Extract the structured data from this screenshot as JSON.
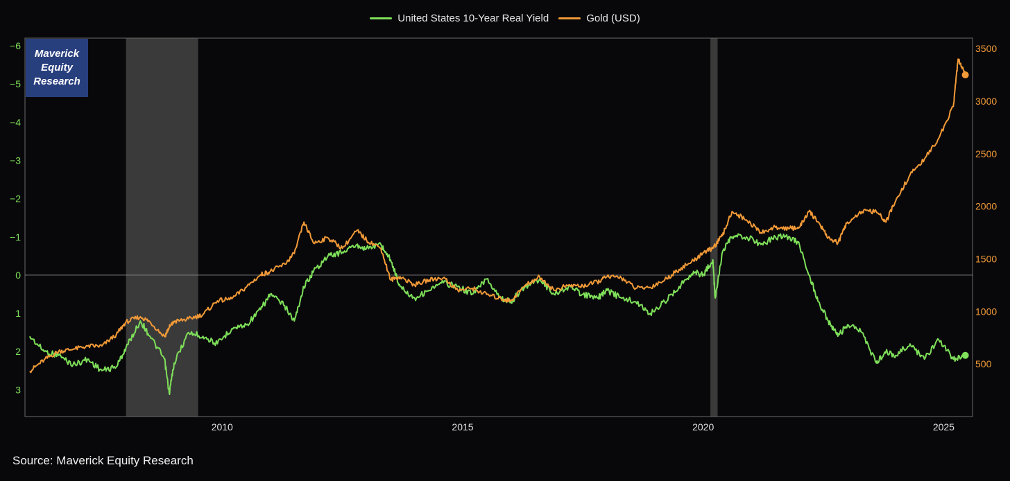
{
  "source_text": "Source: Maverick Equity Research",
  "badge": {
    "line1": "Maverick",
    "line2": "Equity",
    "line3": "Research"
  },
  "colors": {
    "background": "#08080a",
    "real_yield": "#7fe05a",
    "gold": "#f29a38",
    "recession_shade": "#3a3a3a",
    "badge_bg": "#283f7e"
  },
  "chart_data": {
    "type": "line",
    "title": "",
    "x_range": [
      2005.9,
      2025.6
    ],
    "x_ticks": [
      "2010",
      "2015",
      "2020",
      "2025"
    ],
    "legend_position": "top-center",
    "grid": false,
    "recession_periods": [
      [
        2008.0,
        2009.5
      ],
      [
        2020.15,
        2020.3
      ]
    ],
    "axes": {
      "left": {
        "inverted": true,
        "range": [
          -6.2,
          3.7
        ],
        "ticks": [
          -6,
          -5,
          -4,
          -3,
          -2,
          -1,
          0,
          1,
          2,
          3
        ],
        "tick_labels": [
          "−6",
          "−5",
          "−4",
          "−3",
          "−2",
          "−1",
          "0",
          "1",
          "2",
          "3"
        ]
      },
      "right": {
        "range": [
          -0.3,
          3600
        ],
        "ticks": [
          500,
          1000,
          1500,
          2000,
          2500,
          3000,
          3500
        ],
        "tick_labels": [
          "500",
          "1000",
          "1500",
          "2000",
          "2500",
          "3000",
          "3500"
        ]
      }
    },
    "series": [
      {
        "name": "United States 10-Year Real Yield",
        "axis": "left",
        "x": [
          2006.0,
          2006.3,
          2006.6,
          2006.9,
          2007.2,
          2007.5,
          2007.8,
          2008.0,
          2008.3,
          2008.5,
          2008.8,
          2008.9,
          2009.0,
          2009.3,
          2009.6,
          2009.9,
          2010.2,
          2010.5,
          2010.8,
          2011.0,
          2011.3,
          2011.5,
          2011.7,
          2011.9,
          2012.2,
          2012.5,
          2012.8,
          2013.0,
          2013.3,
          2013.5,
          2013.7,
          2014.0,
          2014.3,
          2014.6,
          2014.9,
          2015.2,
          2015.5,
          2015.8,
          2016.0,
          2016.3,
          2016.6,
          2016.9,
          2017.2,
          2017.5,
          2017.8,
          2018.0,
          2018.3,
          2018.6,
          2018.9,
          2019.2,
          2019.5,
          2019.8,
          2020.0,
          2020.2,
          2020.25,
          2020.4,
          2020.6,
          2020.9,
          2021.2,
          2021.5,
          2021.8,
          2022.0,
          2022.2,
          2022.4,
          2022.6,
          2022.8,
          2023.0,
          2023.3,
          2023.6,
          2023.8,
          2024.0,
          2024.3,
          2024.6,
          2024.9,
          2025.2,
          2025.45
        ],
        "values": [
          1.6,
          2.0,
          2.1,
          2.35,
          2.2,
          2.5,
          2.4,
          1.9,
          1.2,
          1.6,
          2.2,
          3.1,
          2.3,
          1.5,
          1.6,
          1.8,
          1.4,
          1.3,
          0.9,
          0.5,
          0.8,
          1.2,
          0.3,
          -0.1,
          -0.5,
          -0.6,
          -0.8,
          -0.7,
          -0.8,
          -0.4,
          0.3,
          0.6,
          0.4,
          0.2,
          0.3,
          0.5,
          0.1,
          0.6,
          0.7,
          0.3,
          0.1,
          0.5,
          0.3,
          0.5,
          0.6,
          0.4,
          0.6,
          0.7,
          1.0,
          0.7,
          0.3,
          -0.1,
          0.0,
          -0.4,
          0.6,
          -0.6,
          -1.0,
          -1.0,
          -0.8,
          -1.0,
          -1.0,
          -0.8,
          0.0,
          0.7,
          1.2,
          1.6,
          1.3,
          1.5,
          2.3,
          2.0,
          2.1,
          1.8,
          2.2,
          1.7,
          2.2,
          2.1
        ]
      },
      {
        "name": "Gold (USD)",
        "axis": "right",
        "x": [
          2006.0,
          2006.3,
          2006.6,
          2006.9,
          2007.2,
          2007.5,
          2007.8,
          2008.0,
          2008.3,
          2008.5,
          2008.8,
          2008.9,
          2009.0,
          2009.3,
          2009.6,
          2009.9,
          2010.2,
          2010.5,
          2010.8,
          2011.0,
          2011.3,
          2011.5,
          2011.7,
          2011.9,
          2012.2,
          2012.5,
          2012.8,
          2013.0,
          2013.3,
          2013.5,
          2013.7,
          2014.0,
          2014.3,
          2014.6,
          2014.9,
          2015.2,
          2015.5,
          2015.8,
          2016.0,
          2016.3,
          2016.6,
          2016.9,
          2017.2,
          2017.5,
          2017.8,
          2018.0,
          2018.3,
          2018.6,
          2018.9,
          2019.2,
          2019.5,
          2019.8,
          2020.0,
          2020.2,
          2020.4,
          2020.6,
          2020.9,
          2021.2,
          2021.5,
          2021.8,
          2022.0,
          2022.2,
          2022.4,
          2022.6,
          2022.8,
          2023.0,
          2023.3,
          2023.6,
          2023.8,
          2024.0,
          2024.3,
          2024.6,
          2024.9,
          2025.2,
          2025.3,
          2025.45
        ],
        "values": [
          430,
          540,
          620,
          640,
          670,
          670,
          780,
          900,
          950,
          900,
          760,
          850,
          900,
          930,
          970,
          1100,
          1120,
          1230,
          1350,
          1380,
          1450,
          1550,
          1850,
          1650,
          1700,
          1600,
          1770,
          1680,
          1600,
          1300,
          1330,
          1250,
          1300,
          1320,
          1200,
          1220,
          1160,
          1120,
          1100,
          1250,
          1330,
          1200,
          1250,
          1240,
          1280,
          1330,
          1320,
          1220,
          1230,
          1300,
          1400,
          1480,
          1560,
          1600,
          1720,
          1950,
          1870,
          1750,
          1800,
          1790,
          1800,
          1950,
          1850,
          1700,
          1650,
          1850,
          1950,
          1950,
          1850,
          2050,
          2300,
          2450,
          2650,
          2950,
          3400,
          3250
        ]
      }
    ]
  }
}
